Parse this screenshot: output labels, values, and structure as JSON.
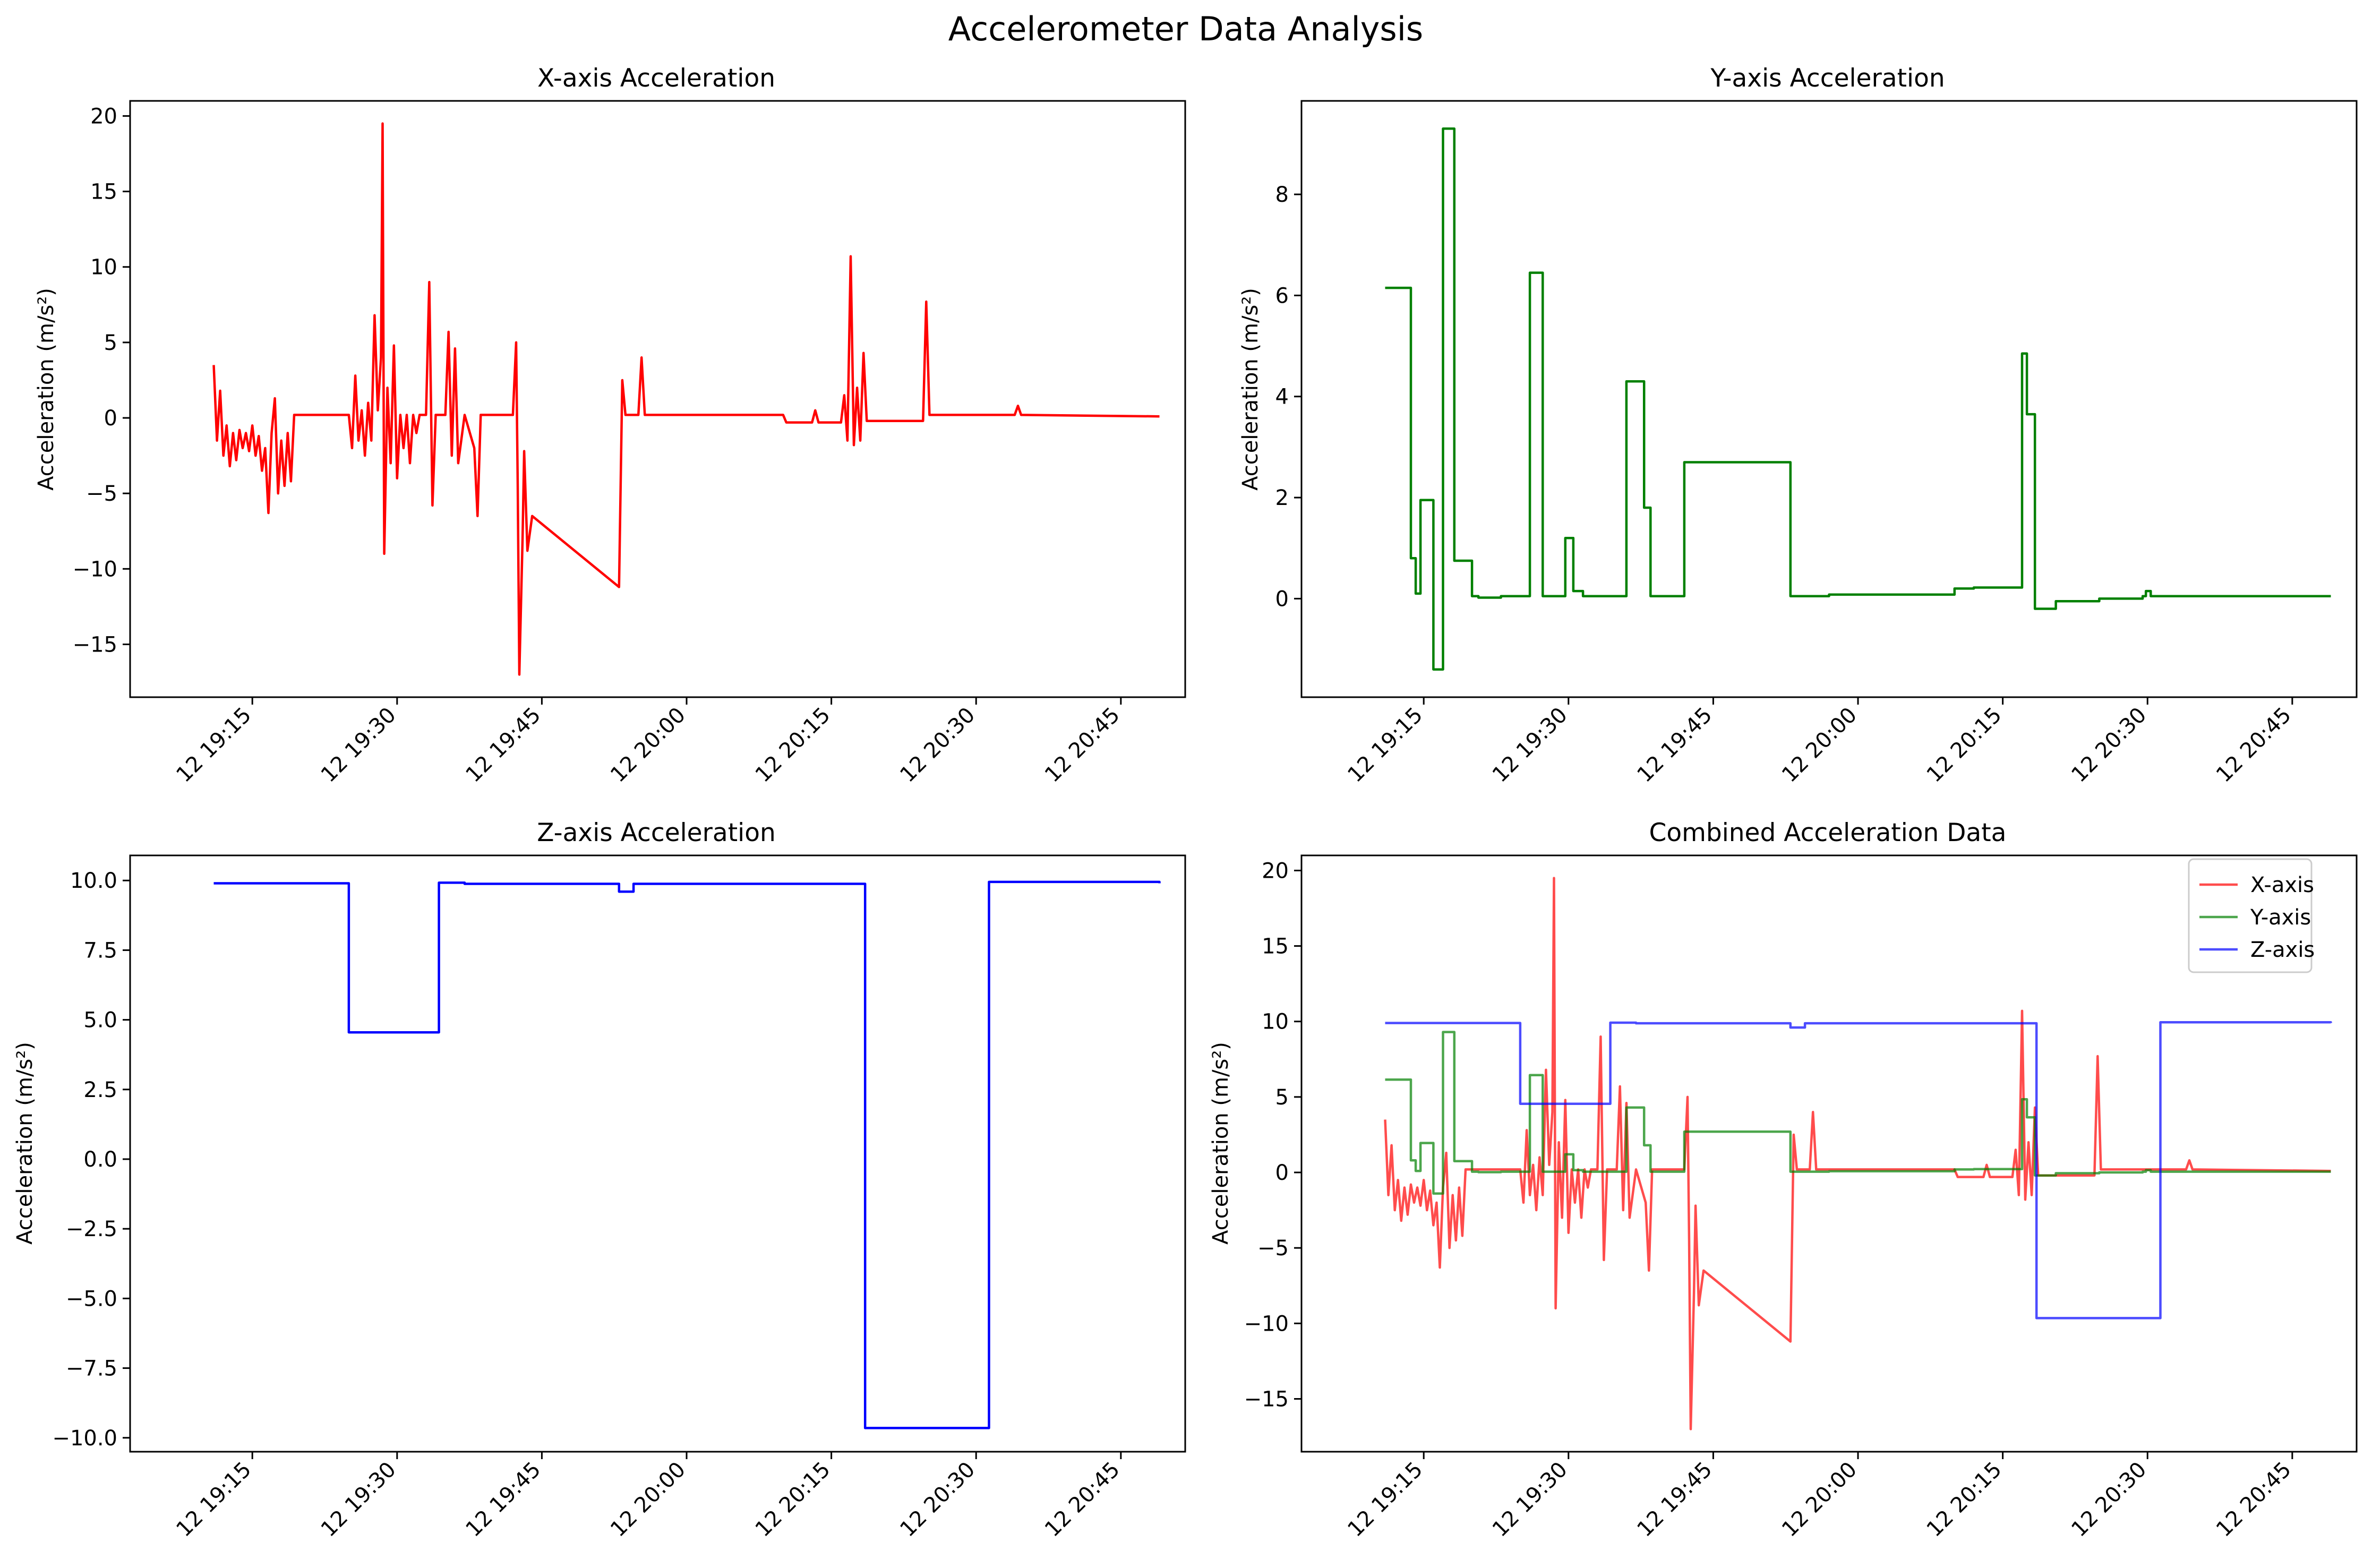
{
  "figure": {
    "title": "Accelerometer Data Analysis"
  },
  "colors": {
    "x": "#ff0000",
    "y": "#008000",
    "z": "#0000ff"
  },
  "chart_data": [
    {
      "type": "line",
      "title": "X-axis Acceleration",
      "xlabel": "",
      "ylabel": "Acceleration (m/s²)",
      "xlim": [
        "19:02:20",
        "20:51:40"
      ],
      "ylim": [
        -18.5,
        21.0
      ],
      "yticks": [
        -15,
        -10,
        -5,
        0,
        5,
        10,
        15,
        20
      ],
      "ytick_labels": [
        "−15",
        "−10",
        "−5",
        "0",
        "5",
        "10",
        "15",
        "20"
      ],
      "xticks": [
        "19:15",
        "19:30",
        "19:45",
        "20:00",
        "20:15",
        "20:30",
        "20:45"
      ],
      "xtick_labels": [
        "12 19:15",
        "12 19:30",
        "12 19:45",
        "12 20:00",
        "12 20:15",
        "12 20:30",
        "12 20:45"
      ],
      "grid": false,
      "series": [
        {
          "color": "#ff0000",
          "points": [
            [
              "19:11:00",
              3.5
            ],
            [
              "19:11:20",
              -1.5
            ],
            [
              "19:11:40",
              1.8
            ],
            [
              "19:12:00",
              -2.5
            ],
            [
              "19:12:20",
              -0.5
            ],
            [
              "19:12:40",
              -3.2
            ],
            [
              "19:13:00",
              -1.0
            ],
            [
              "19:13:20",
              -2.8
            ],
            [
              "19:13:40",
              -0.8
            ],
            [
              "19:14:00",
              -2.0
            ],
            [
              "19:14:20",
              -1.0
            ],
            [
              "19:14:40",
              -2.2
            ],
            [
              "19:15:00",
              -0.5
            ],
            [
              "19:15:20",
              -2.5
            ],
            [
              "19:15:40",
              -1.2
            ],
            [
              "19:16:00",
              -3.5
            ],
            [
              "19:16:20",
              -2.0
            ],
            [
              "19:16:40",
              -6.3
            ],
            [
              "19:17:00",
              -1.0
            ],
            [
              "19:17:20",
              1.3
            ],
            [
              "19:17:40",
              -5.0
            ],
            [
              "19:18:00",
              -1.5
            ],
            [
              "19:18:20",
              -4.5
            ],
            [
              "19:18:40",
              -1.0
            ],
            [
              "19:19:00",
              -4.2
            ],
            [
              "19:19:20",
              0.2
            ],
            [
              "19:25:00",
              0.2
            ],
            [
              "19:25:20",
              -2.0
            ],
            [
              "19:25:40",
              2.8
            ],
            [
              "19:26:00",
              -1.5
            ],
            [
              "19:26:20",
              0.5
            ],
            [
              "19:26:40",
              -2.5
            ],
            [
              "19:27:00",
              1.0
            ],
            [
              "19:27:20",
              -1.5
            ],
            [
              "19:27:40",
              6.8
            ],
            [
              "19:28:00",
              0.5
            ],
            [
              "19:28:20",
              4.0
            ],
            [
              "19:28:30",
              19.5
            ],
            [
              "19:28:40",
              -9.0
            ],
            [
              "19:29:00",
              2.0
            ],
            [
              "19:29:20",
              -3.0
            ],
            [
              "19:29:40",
              4.8
            ],
            [
              "19:30:00",
              -4.0
            ],
            [
              "19:30:20",
              0.2
            ],
            [
              "19:30:40",
              -2.0
            ],
            [
              "19:31:00",
              0.2
            ],
            [
              "19:31:20",
              -3.0
            ],
            [
              "19:31:40",
              0.2
            ],
            [
              "19:32:00",
              -1.0
            ],
            [
              "19:32:20",
              0.2
            ],
            [
              "19:33:00",
              0.2
            ],
            [
              "19:33:20",
              9.0
            ],
            [
              "19:33:40",
              -5.8
            ],
            [
              "19:34:00",
              0.2
            ],
            [
              "19:35:00",
              0.2
            ],
            [
              "19:35:20",
              5.7
            ],
            [
              "19:35:40",
              -2.5
            ],
            [
              "19:36:00",
              4.6
            ],
            [
              "19:36:20",
              -3.0
            ],
            [
              "19:37:00",
              0.2
            ],
            [
              "19:38:00",
              -2.0
            ],
            [
              "19:38:20",
              -6.5
            ],
            [
              "19:38:40",
              0.2
            ],
            [
              "19:42:00",
              0.2
            ],
            [
              "19:42:20",
              5.0
            ],
            [
              "19:42:30",
              -4.5
            ],
            [
              "19:42:40",
              -17.0
            ],
            [
              "19:43:00",
              -8.0
            ],
            [
              "19:43:10",
              -2.2
            ],
            [
              "19:43:30",
              -8.8
            ],
            [
              "19:44:00",
              -6.5
            ],
            [
              "19:53:00",
              -11.2
            ],
            [
              "19:53:20",
              2.5
            ],
            [
              "19:53:40",
              0.2
            ],
            [
              "19:55:00",
              0.2
            ],
            [
              "19:55:20",
              4.0
            ],
            [
              "19:55:40",
              0.2
            ],
            [
              "20:10:00",
              0.2
            ],
            [
              "20:10:20",
              -0.3
            ],
            [
              "20:13:00",
              -0.3
            ],
            [
              "20:13:20",
              0.5
            ],
            [
              "20:13:40",
              -0.3
            ],
            [
              "20:16:00",
              -0.3
            ],
            [
              "20:16:20",
              1.5
            ],
            [
              "20:16:40",
              -1.5
            ],
            [
              "20:17:00",
              10.7
            ],
            [
              "20:17:20",
              -1.8
            ],
            [
              "20:17:40",
              2.0
            ],
            [
              "20:18:00",
              -1.5
            ],
            [
              "20:18:20",
              4.3
            ],
            [
              "20:18:40",
              -0.2
            ],
            [
              "20:24:30",
              -0.2
            ],
            [
              "20:24:50",
              7.7
            ],
            [
              "20:25:10",
              0.2
            ],
            [
              "20:34:00",
              0.2
            ],
            [
              "20:34:20",
              0.8
            ],
            [
              "20:34:40",
              0.2
            ],
            [
              "20:49:00",
              0.1
            ]
          ]
        }
      ]
    },
    {
      "type": "line",
      "title": "Y-axis Acceleration",
      "xlabel": "",
      "ylabel": "Acceleration (m/s²)",
      "xlim": [
        "19:02:20",
        "20:51:40"
      ],
      "ylim": [
        -1.95,
        9.85
      ],
      "yticks": [
        0,
        2,
        4,
        6,
        8
      ],
      "ytick_labels": [
        "0",
        "2",
        "4",
        "6",
        "8"
      ],
      "xticks": [
        "19:15",
        "19:30",
        "19:45",
        "20:00",
        "20:15",
        "20:30",
        "20:45"
      ],
      "xtick_labels": [
        "12 19:15",
        "12 19:30",
        "12 19:45",
        "12 20:00",
        "12 20:15",
        "12 20:30",
        "12 20:45"
      ],
      "grid": false,
      "series": [
        {
          "color": "#008000",
          "step": true,
          "points": [
            [
              "19:11:00",
              6.15
            ],
            [
              "19:13:40",
              0.8
            ],
            [
              "19:14:10",
              0.1
            ],
            [
              "19:14:40",
              1.95
            ],
            [
              "19:16:00",
              -1.4
            ],
            [
              "19:17:00",
              9.3
            ],
            [
              "19:18:10",
              0.75
            ],
            [
              "19:20:00",
              0.05
            ],
            [
              "19:20:40",
              0.02
            ],
            [
              "19:23:00",
              0.05
            ],
            [
              "19:26:00",
              6.45
            ],
            [
              "19:27:20",
              0.05
            ],
            [
              "19:29:40",
              1.2
            ],
            [
              "19:30:30",
              0.15
            ],
            [
              "19:31:30",
              0.05
            ],
            [
              "19:36:00",
              4.3
            ],
            [
              "19:37:50",
              1.8
            ],
            [
              "19:38:30",
              0.05
            ],
            [
              "19:42:00",
              2.7
            ],
            [
              "19:53:00",
              0.05
            ],
            [
              "19:57:00",
              0.08
            ],
            [
              "20:10:00",
              0.2
            ],
            [
              "20:12:00",
              0.22
            ],
            [
              "20:17:00",
              4.85
            ],
            [
              "20:17:30",
              3.65
            ],
            [
              "20:18:20",
              -0.2
            ],
            [
              "20:20:30",
              -0.05
            ],
            [
              "20:25:00",
              0.0
            ],
            [
              "20:29:30",
              0.05
            ],
            [
              "20:29:50",
              0.15
            ],
            [
              "20:30:20",
              0.05
            ],
            [
              "20:49:00",
              0.05
            ]
          ]
        }
      ]
    },
    {
      "type": "line",
      "title": "Z-axis Acceleration",
      "xlabel": "",
      "ylabel": "Acceleration (m/s²)",
      "xlim": [
        "19:02:20",
        "20:51:40"
      ],
      "ylim": [
        -10.5,
        10.9
      ],
      "yticks": [
        -10.0,
        -7.5,
        -5.0,
        -2.5,
        0.0,
        2.5,
        5.0,
        7.5,
        10.0
      ],
      "ytick_labels": [
        "−10.0",
        "−7.5",
        "−5.0",
        "−2.5",
        "0.0",
        "2.5",
        "5.0",
        "7.5",
        "10.0"
      ],
      "xticks": [
        "19:15",
        "19:30",
        "19:45",
        "20:00",
        "20:15",
        "20:30",
        "20:45"
      ],
      "xtick_labels": [
        "12 19:15",
        "12 19:30",
        "12 19:45",
        "12 20:00",
        "12 20:15",
        "12 20:30",
        "12 20:45"
      ],
      "grid": false,
      "series": [
        {
          "color": "#0000ff",
          "step": true,
          "points": [
            [
              "19:11:00",
              9.9
            ],
            [
              "19:25:00",
              4.55
            ],
            [
              "19:34:20",
              9.92
            ],
            [
              "19:37:00",
              9.88
            ],
            [
              "19:53:00",
              9.6
            ],
            [
              "19:54:30",
              9.88
            ],
            [
              "20:18:30",
              -9.65
            ],
            [
              "20:31:20",
              9.95
            ],
            [
              "20:49:00",
              9.9
            ]
          ]
        }
      ]
    },
    {
      "type": "line",
      "title": "Combined Acceleration Data",
      "xlabel": "",
      "ylabel": "Acceleration (m/s²)",
      "xlim": [
        "19:02:20",
        "20:51:40"
      ],
      "ylim": [
        -18.5,
        21.0
      ],
      "yticks": [
        -15,
        -10,
        -5,
        0,
        5,
        10,
        15,
        20
      ],
      "ytick_labels": [
        "−15",
        "−10",
        "−5",
        "0",
        "5",
        "10",
        "15",
        "20"
      ],
      "xticks": [
        "19:15",
        "19:30",
        "19:45",
        "20:00",
        "20:15",
        "20:30",
        "20:45"
      ],
      "xtick_labels": [
        "12 19:15",
        "12 19:30",
        "12 19:45",
        "12 20:00",
        "12 20:15",
        "12 20:30",
        "12 20:45"
      ],
      "grid": false,
      "legend": "top-right",
      "series": [
        {
          "name": "X-axis",
          "ref": 0,
          "color": "#ff0000",
          "alpha": 0.7
        },
        {
          "name": "Y-axis",
          "ref": 1,
          "color": "#008000",
          "alpha": 0.7
        },
        {
          "name": "Z-axis",
          "ref": 2,
          "color": "#0000ff",
          "alpha": 0.7
        }
      ]
    }
  ]
}
